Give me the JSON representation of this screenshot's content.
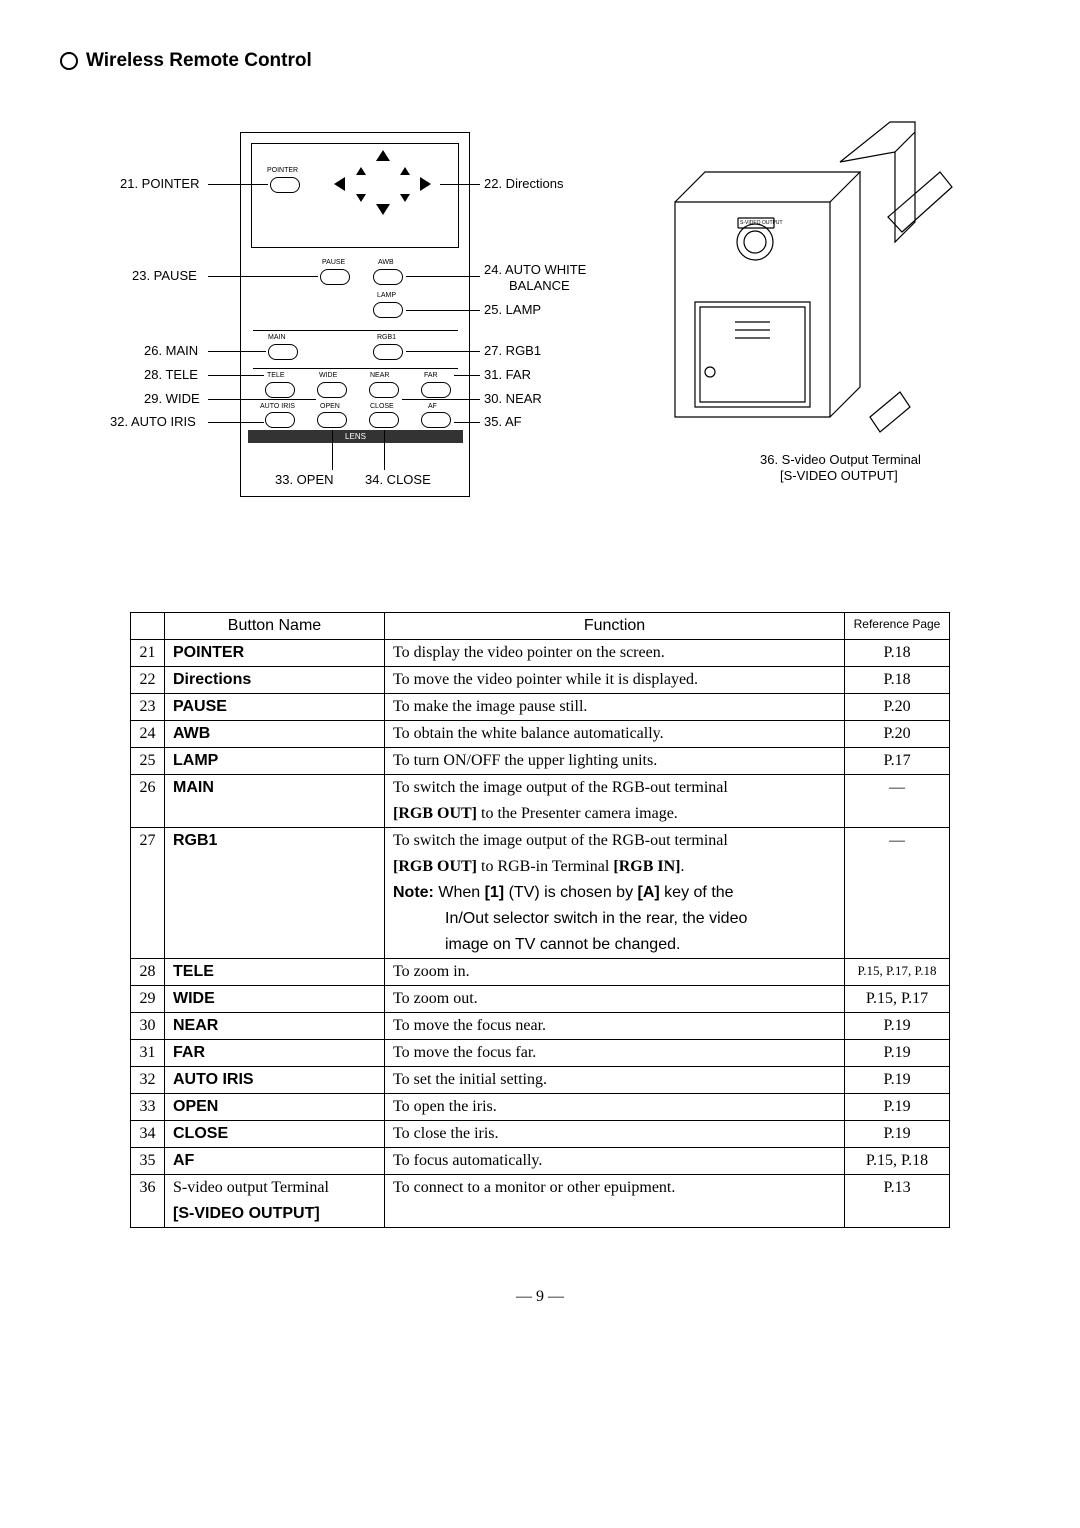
{
  "section_title": "Wireless Remote Control",
  "page_number": "— 9 —",
  "remote": {
    "lens_label": "LENS",
    "tiny": {
      "pointer": "POINTER",
      "pause": "PAUSE",
      "awb": "AWB",
      "lamp": "LAMP",
      "main": "MAIN",
      "rgb1": "RGB1",
      "tele": "TELE",
      "wide": "WIDE",
      "near": "NEAR",
      "far": "FAR",
      "auto_iris": "AUTO IRIS",
      "open": "OPEN",
      "close": "CLOSE",
      "af": "AF"
    },
    "callouts": {
      "c21": "21. POINTER",
      "c22": "22. Directions",
      "c23": "23. PAUSE",
      "c24a": "24. AUTO WHITE",
      "c24b": "BALANCE",
      "c25": "25. LAMP",
      "c26": "26. MAIN",
      "c27": "27. RGB1",
      "c28": "28. TELE",
      "c29": "29. WIDE",
      "c30": "30. NEAR",
      "c31": "31. FAR",
      "c32": "32. AUTO IRIS",
      "c33": "33. OPEN",
      "c34": "34. CLOSE",
      "c35": "35. AF"
    }
  },
  "device_caption_1": "36. S-video Output Terminal",
  "device_caption_2": "[S-VIDEO OUTPUT]",
  "device_svideo_label": "S-VIDEO\nOUTPUT",
  "table": {
    "headers": {
      "name": "Button Name",
      "fn": "Function",
      "ref": "Reference Page"
    },
    "rows": [
      {
        "num": "21",
        "name_bold": "POINTER",
        "fn": "To display the video pointer on the screen.",
        "ref": "P.18"
      },
      {
        "num": "22",
        "name_bold": "Directions",
        "fn": "To move the video pointer while it is displayed.",
        "ref": "P.18"
      },
      {
        "num": "23",
        "name_bold": "PAUSE",
        "fn": "To make the image pause still.",
        "ref": "P.20"
      },
      {
        "num": "24",
        "name_bold": "AWB",
        "fn": "To obtain the white balance automatically.",
        "ref": "P.20"
      },
      {
        "num": "25",
        "name_bold": "LAMP",
        "fn": "To turn ON/OFF the upper lighting units.",
        "ref": "P.17"
      },
      {
        "num": "26",
        "name_bold": "MAIN",
        "fn_lines": [
          {
            "type": "serif",
            "text": "To switch the image output of the RGB-out terminal"
          },
          {
            "type": "mixed",
            "pre_bold": "[RGB OUT]",
            "rest": " to the Presenter camera image."
          }
        ],
        "ref": "—"
      },
      {
        "num": "27",
        "name_bold": "RGB1",
        "fn_lines": [
          {
            "type": "serif",
            "text": "To switch the image output of the RGB-out terminal"
          },
          {
            "type": "mixed",
            "pre_bold": "[RGB OUT]",
            "mid": " to RGB-in Terminal ",
            "post_bold": "[RGB IN]",
            "tail": "."
          },
          {
            "type": "sans",
            "pre_bold": "Note:",
            "rest": "  When ",
            "b1": "[1]",
            "mid2": " (TV) is chosen by ",
            "b2": "[A]",
            "tail2": " key of the"
          },
          {
            "type": "sans_indent",
            "text": "In/Out selector switch in the rear, the video"
          },
          {
            "type": "sans_indent",
            "text": "image on TV cannot be changed."
          }
        ],
        "ref": "—"
      },
      {
        "num": "28",
        "name_bold": "TELE",
        "fn": "To zoom in.",
        "ref": "P.15, P.17, P.18",
        "ref_small": true
      },
      {
        "num": "29",
        "name_bold": "WIDE",
        "fn": "To zoom out.",
        "ref": "P.15, P.17"
      },
      {
        "num": "30",
        "name_bold": "NEAR",
        "fn": "To move the focus near.",
        "ref": "P.19"
      },
      {
        "num": "31",
        "name_bold": "FAR",
        "fn": "To move the focus far.",
        "ref": "P.19"
      },
      {
        "num": "32",
        "name_bold": "AUTO IRIS",
        "fn": "To set the initial setting.",
        "ref": "P.19"
      },
      {
        "num": "33",
        "name_bold": "OPEN",
        "fn": "To open the iris.",
        "ref": "P.19"
      },
      {
        "num": "34",
        "name_bold": "CLOSE",
        "fn": "To close the iris.",
        "ref": "P.19"
      },
      {
        "num": "35",
        "name_bold": "AF",
        "fn": "To focus automatically.",
        "ref": "P.15, P.18"
      },
      {
        "num": "36",
        "name_plain": "S-video output Terminal",
        "name_bold_sub": "[S-VIDEO OUTPUT]",
        "fn": "To connect to a monitor or other epuipment.",
        "ref": "P.13"
      }
    ]
  }
}
